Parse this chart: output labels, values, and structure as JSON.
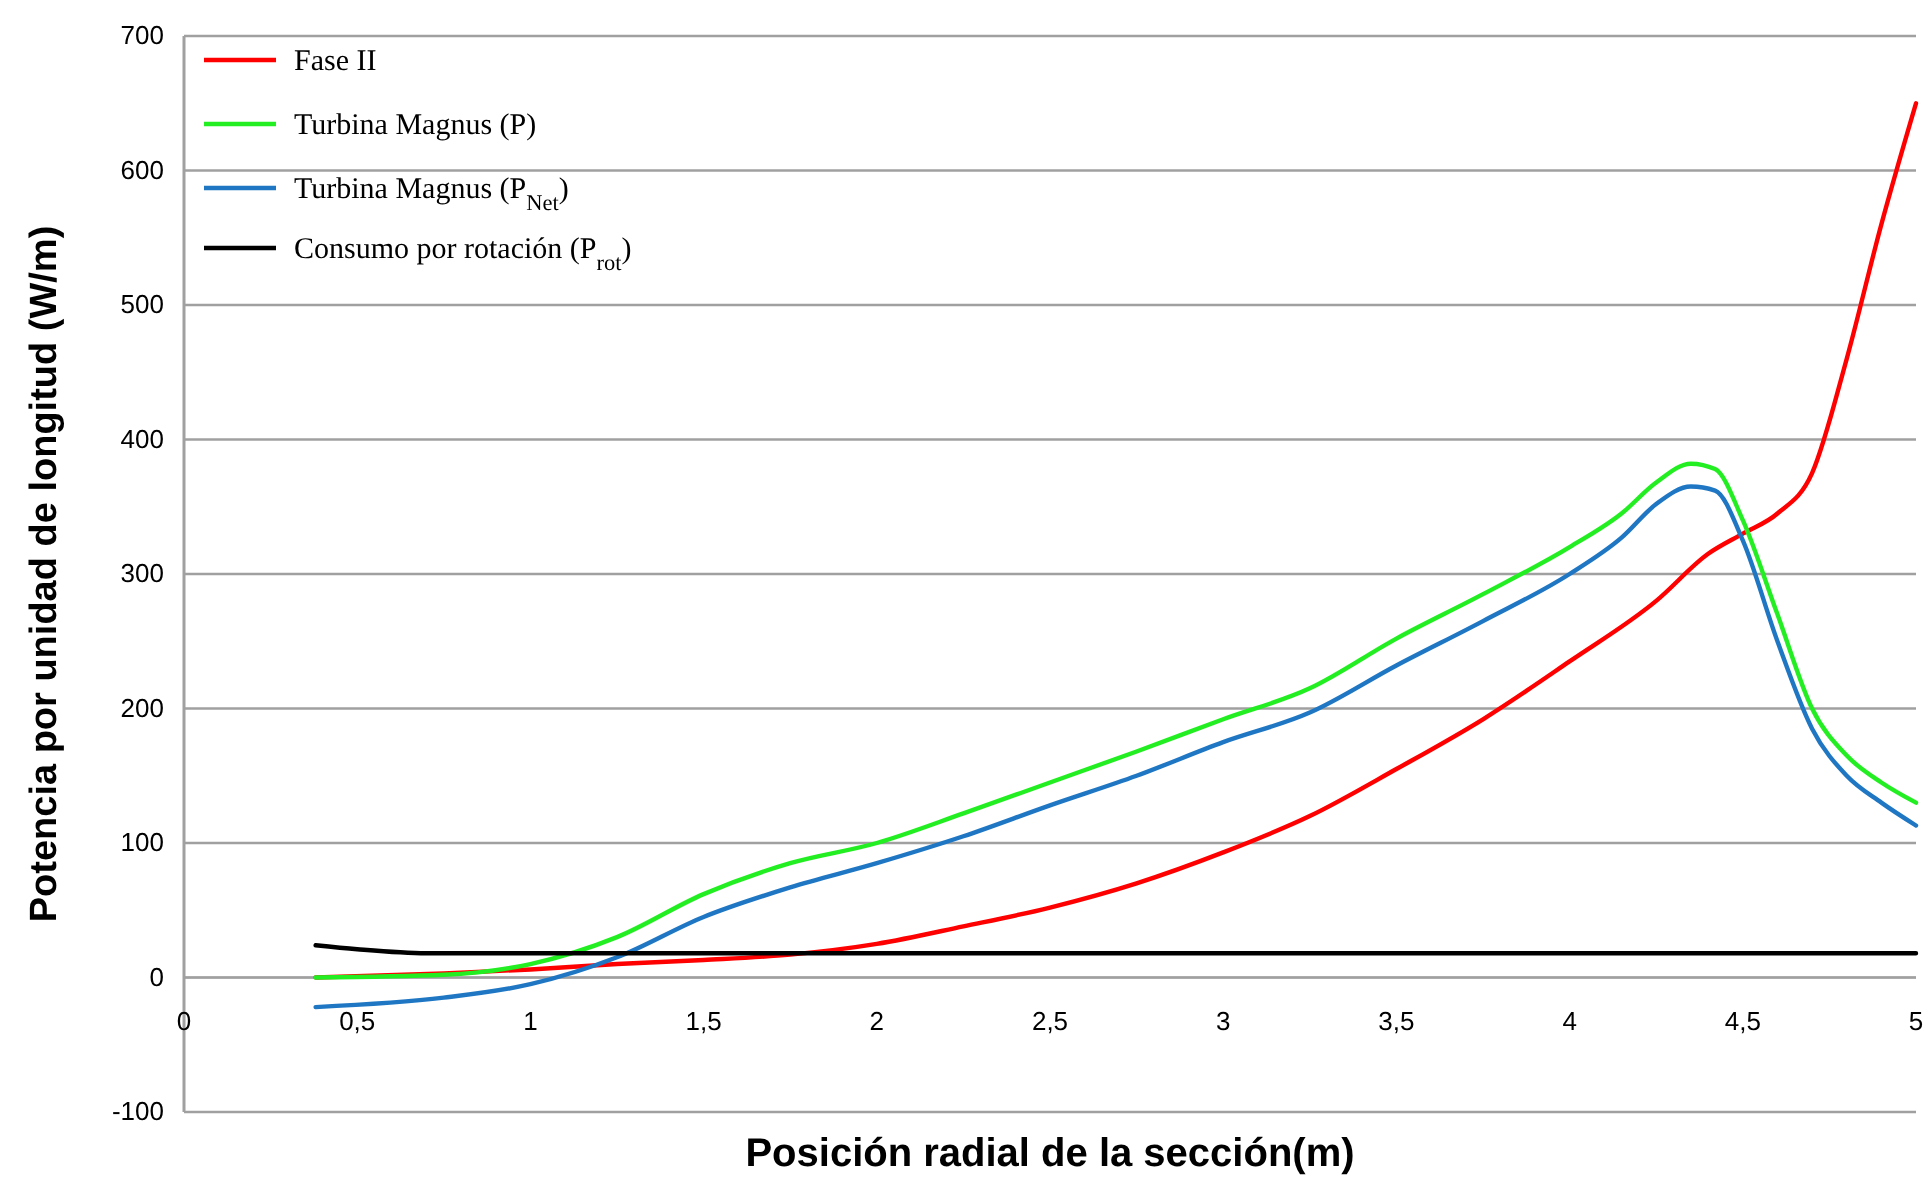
{
  "chart_data": {
    "type": "line",
    "xlabel": "Posición radial de la sección(m)",
    "ylabel": "Potencia por unidad de longitud (W/m)",
    "xlim": [
      0,
      5
    ],
    "xticks": [
      0,
      {
        "value": 0.5,
        "label": "0,5"
      },
      1,
      {
        "value": 1.5,
        "label": "1,5"
      },
      2,
      {
        "value": 2.5,
        "label": "2,5"
      },
      3,
      {
        "value": 3.5,
        "label": "3,5"
      },
      4,
      {
        "value": 4.5,
        "label": "4,5"
      },
      5
    ],
    "ylim": [
      -100,
      700
    ],
    "yticks": [
      -100,
      0,
      100,
      200,
      300,
      400,
      500,
      600,
      700
    ],
    "grid": "y",
    "legend": "top left",
    "line_style": "solid",
    "marker": "none",
    "series": [
      {
        "name": "Fase II",
        "color": "#ff0000",
        "x": [
          0.38,
          0.75,
          1,
          1.25,
          1.5,
          1.75,
          2,
          2.25,
          2.5,
          2.75,
          3,
          3.25,
          3.5,
          3.75,
          4,
          4.25,
          4.4,
          4.5,
          4.6,
          4.7,
          4.8,
          4.9,
          5
        ],
        "values": [
          0,
          3,
          6,
          10,
          13,
          17,
          25,
          38,
          52,
          70,
          93,
          120,
          155,
          192,
          235,
          280,
          315,
          330,
          345,
          375,
          460,
          560,
          650
        ]
      },
      {
        "name": "Turbina Magnus (P)",
        "color": "#22ee22",
        "x": [
          0.38,
          0.75,
          1,
          1.25,
          1.5,
          1.75,
          2,
          2.25,
          2.5,
          2.75,
          3,
          3.25,
          3.5,
          3.75,
          4,
          4.15,
          4.25,
          4.35,
          4.42,
          4.5,
          4.6,
          4.7,
          4.8,
          4.9,
          5
        ],
        "values": [
          0,
          2,
          10,
          30,
          62,
          85,
          100,
          122,
          145,
          168,
          192,
          215,
          252,
          285,
          320,
          345,
          368,
          382,
          378,
          340,
          270,
          200,
          165,
          145,
          130
        ]
      },
      {
        "name": "Turbina Magnus (P$_{Net}$)",
        "color": "#1f77c4",
        "x": [
          0.38,
          0.75,
          1,
          1.25,
          1.5,
          1.75,
          2,
          2.25,
          2.5,
          2.75,
          3,
          3.25,
          3.5,
          3.75,
          4,
          4.15,
          4.25,
          4.35,
          4.42,
          4.5,
          4.6,
          4.7,
          4.8,
          4.9,
          5
        ],
        "values": [
          -22,
          -15,
          -5,
          15,
          45,
          67,
          85,
          105,
          128,
          150,
          175,
          197,
          232,
          265,
          300,
          327,
          352,
          365,
          362,
          325,
          250,
          185,
          150,
          130,
          113
        ]
      },
      {
        "name": "Consumo por rotación (P$_{rot}$)",
        "color": "#000000",
        "x": [
          0.38,
          0.5,
          0.7,
          1,
          5
        ],
        "values": [
          24,
          21,
          18,
          18,
          18
        ]
      }
    ]
  }
}
